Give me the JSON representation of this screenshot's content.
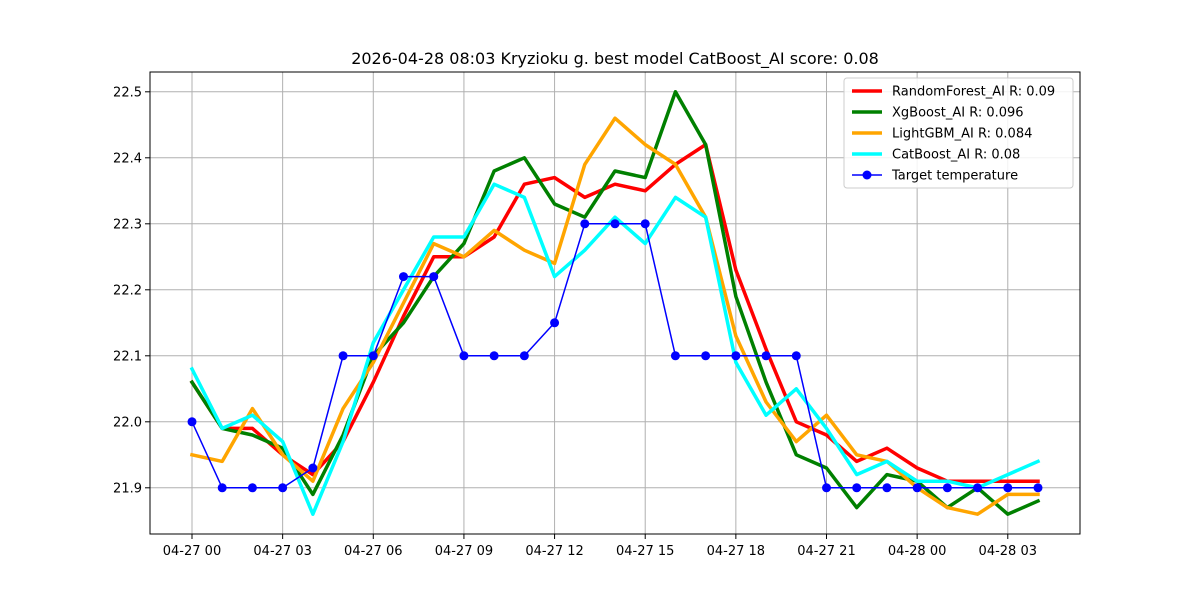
{
  "chart_data": {
    "type": "line",
    "title": "2026-04-28 08:03 Kryzioku g. best model CatBoost_AI score: 0.08",
    "xlabel": "",
    "ylabel": "",
    "x": [
      "04-27 00",
      "04-27 01",
      "04-27 02",
      "04-27 03",
      "04-27 04",
      "04-27 05",
      "04-27 06",
      "04-27 07",
      "04-27 08",
      "04-27 09",
      "04-27 10",
      "04-27 11",
      "04-27 12",
      "04-27 13",
      "04-27 14",
      "04-27 15",
      "04-27 16",
      "04-27 17",
      "04-27 18",
      "04-27 19",
      "04-27 20",
      "04-27 21",
      "04-27 22",
      "04-27 23",
      "04-28 00",
      "04-28 01",
      "04-28 02",
      "04-28 03",
      "04-28 04"
    ],
    "x_tick_labels": [
      "04-27 00",
      "04-27 03",
      "04-27 06",
      "04-27 09",
      "04-27 12",
      "04-27 15",
      "04-27 18",
      "04-27 21",
      "04-28 00",
      "04-28 03"
    ],
    "x_tick_indices": [
      0,
      3,
      6,
      9,
      12,
      15,
      18,
      21,
      24,
      27
    ],
    "ylim": [
      21.83,
      22.53
    ],
    "y_ticks": [
      "21.9",
      "22.0",
      "22.1",
      "22.2",
      "22.3",
      "22.4",
      "22.5"
    ],
    "grid": true,
    "legend_position": "top-right",
    "series": [
      {
        "name": "RandomForest_AI R: 0.09",
        "color": "#ff0000",
        "marker": false,
        "values": [
          22.06,
          21.99,
          21.99,
          21.95,
          21.92,
          21.97,
          22.06,
          22.16,
          22.25,
          22.25,
          22.28,
          22.36,
          22.37,
          22.34,
          22.36,
          22.35,
          22.39,
          22.42,
          22.23,
          22.11,
          22.0,
          21.98,
          21.94,
          21.96,
          21.93,
          21.91,
          21.91,
          21.91,
          21.91
        ]
      },
      {
        "name": "XgBoost_AI R: 0.096",
        "color": "#008000",
        "marker": false,
        "values": [
          22.06,
          21.99,
          21.98,
          21.96,
          21.89,
          21.98,
          22.1,
          22.15,
          22.22,
          22.27,
          22.38,
          22.4,
          22.33,
          22.31,
          22.38,
          22.37,
          22.5,
          22.42,
          22.19,
          22.06,
          21.95,
          21.93,
          21.87,
          21.92,
          21.91,
          21.87,
          21.9,
          21.86,
          21.88
        ]
      },
      {
        "name": "LightGBM_AI R: 0.084",
        "color": "#ffa500",
        "marker": false,
        "values": [
          21.95,
          21.94,
          22.02,
          21.95,
          21.91,
          22.02,
          22.09,
          22.18,
          22.27,
          22.25,
          22.29,
          22.26,
          22.24,
          22.39,
          22.46,
          22.42,
          22.39,
          22.31,
          22.13,
          22.03,
          21.97,
          22.01,
          21.95,
          21.94,
          21.9,
          21.87,
          21.86,
          21.89,
          21.89
        ]
      },
      {
        "name": "CatBoost_AI R: 0.08",
        "color": "#00ffff",
        "marker": false,
        "values": [
          22.08,
          21.99,
          22.01,
          21.97,
          21.86,
          21.97,
          22.12,
          22.2,
          22.28,
          22.28,
          22.36,
          22.34,
          22.22,
          22.26,
          22.31,
          22.27,
          22.34,
          22.31,
          22.09,
          22.01,
          22.05,
          21.99,
          21.92,
          21.94,
          21.91,
          21.91,
          21.9,
          21.92,
          21.94
        ]
      },
      {
        "name": "Target temperature",
        "color": "#0000ff",
        "marker": true,
        "values": [
          22.0,
          21.9,
          21.9,
          21.9,
          21.93,
          22.1,
          22.1,
          22.22,
          22.22,
          22.1,
          22.1,
          22.1,
          22.15,
          22.3,
          22.3,
          22.3,
          22.1,
          22.1,
          22.1,
          22.1,
          22.1,
          21.9,
          21.9,
          21.9,
          21.9,
          21.9,
          21.9,
          21.9,
          21.9
        ]
      }
    ]
  }
}
